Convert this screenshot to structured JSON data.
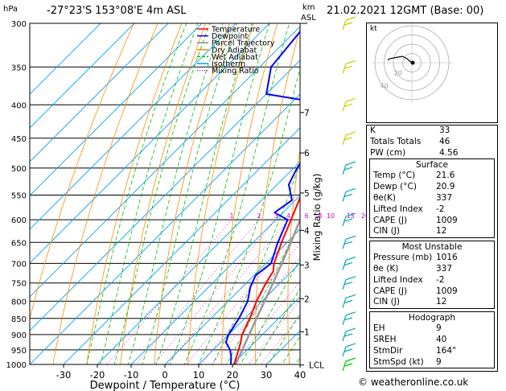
{
  "header": {
    "hpa_label": "hPa",
    "location": "-27°23'S  153°08'E  4m  ASL",
    "km_label": "km",
    "asl_label": "ASL",
    "datetime": "21.02.2021  12GMT  (Base: 00)"
  },
  "legend": [
    {
      "label": "Temperature",
      "color": "#ff0000",
      "style": "solid"
    },
    {
      "label": "Dewpoint",
      "color": "#0000ff",
      "style": "solid"
    },
    {
      "label": "Parcel Trajectory",
      "color": "#888888",
      "style": "solid"
    },
    {
      "label": "Dry Adiabat",
      "color": "#ff8c00",
      "style": "solid"
    },
    {
      "label": "Wet Adiabat",
      "color": "#00bb00",
      "style": "dashed"
    },
    {
      "label": "Isotherm",
      "color": "#00a0ff",
      "style": "solid"
    },
    {
      "label": "Mixing Ratio",
      "color": "#dd00dd",
      "style": "dotted"
    }
  ],
  "chart_data": {
    "type": "line",
    "xlabel": "Dewpoint / Temperature (°C)",
    "ylabel_right": "Mixing Ratio (g/kg)",
    "x_ticks": [
      -30,
      -20,
      -10,
      0,
      10,
      20,
      30,
      40
    ],
    "pressure_levels": [
      300,
      350,
      400,
      450,
      500,
      550,
      600,
      650,
      700,
      750,
      800,
      850,
      900,
      950,
      1000
    ],
    "km_ticks": [
      {
        "label": "7",
        "p": 411
      },
      {
        "label": "6",
        "p": 474
      },
      {
        "label": "5",
        "p": 546
      },
      {
        "label": "4",
        "p": 623
      },
      {
        "label": "3",
        "p": 704
      },
      {
        "label": "2",
        "p": 793
      },
      {
        "label": "1",
        "p": 891
      },
      {
        "label": "LCL",
        "p": 1002
      }
    ],
    "mixing_ratio_labels": [
      "1",
      "2",
      "3",
      "4",
      "6",
      "8",
      "10",
      "15",
      "20",
      "25"
    ],
    "mixing_ratio_values": [
      1,
      2,
      3,
      4,
      6,
      8,
      10,
      15,
      20,
      25
    ],
    "series": [
      {
        "name": "Temperature",
        "color": "#ff0000",
        "p": [
          1016,
          1000,
          975,
          950,
          925,
          900,
          850,
          800,
          750,
          720,
          700,
          650,
          600,
          550,
          500,
          450,
          400,
          350,
          300
        ],
        "t": [
          21.6,
          20.5,
          19.0,
          17.5,
          15.9,
          14.0,
          11.5,
          8.4,
          5.8,
          4.5,
          2.4,
          -1.6,
          -5.5,
          -9.8,
          -14.9,
          -20.3,
          -26.7,
          -34.2,
          -42.9
        ]
      },
      {
        "name": "Dewpoint",
        "color": "#0000ff",
        "p": [
          1016,
          1000,
          975,
          950,
          925,
          900,
          850,
          800,
          760,
          730,
          700,
          650,
          600,
          585,
          560,
          530,
          500,
          450,
          430,
          400,
          385,
          350,
          300
        ],
        "t": [
          20.9,
          19.5,
          17.5,
          15.0,
          11.5,
          10.0,
          8.3,
          5.8,
          2.3,
          0.5,
          1.5,
          -2.7,
          -6.5,
          -12.5,
          -11.0,
          -16.6,
          -19.0,
          -21.3,
          -24.0,
          -27.3,
          -50.0,
          -56.6,
          -58.9
        ]
      },
      {
        "name": "Parcel Trajectory",
        "color": "#999999",
        "p": [
          1016,
          1000,
          950,
          900,
          850,
          800,
          750,
          700,
          650,
          600,
          550,
          500,
          450,
          400,
          350,
          300
        ],
        "t": [
          21.6,
          20.9,
          18.6,
          16.1,
          13.5,
          10.8,
          7.9,
          4.7,
          1.2,
          -2.8,
          -7.3,
          -12.6,
          -18.8,
          -26.0,
          -34.6,
          -44.6
        ]
      }
    ]
  },
  "wind_barbs": {
    "p": [
      300,
      350,
      400,
      450,
      500,
      550,
      600,
      650,
      700,
      750,
      800,
      850,
      900,
      950,
      1000
    ],
    "color_upper": "#cccc00",
    "color_mid": "#00aaaa",
    "color_low": "#00cc00"
  },
  "hodograph": {
    "label": "kt",
    "rings": [
      10,
      20,
      30,
      40
    ],
    "ring_labels": [
      "20",
      "40"
    ]
  },
  "indices": [
    {
      "label": "K",
      "value": "33"
    },
    {
      "label": "Totals Totals",
      "value": "46"
    },
    {
      "label": "PW (cm)",
      "value": "4.56"
    }
  ],
  "surface": {
    "title": "Surface",
    "rows": [
      {
        "label": "Temp (°C)",
        "value": "21.6"
      },
      {
        "label": "Dewp (°C)",
        "value": "20.9"
      },
      {
        "label": "θe(K)",
        "value": "337"
      },
      {
        "label": "Lifted Index",
        "value": "-2"
      },
      {
        "label": "CAPE (J)",
        "value": "1009"
      },
      {
        "label": "CIN (J)",
        "value": "12"
      }
    ]
  },
  "most_unstable": {
    "title": "Most Unstable",
    "rows": [
      {
        "label": "Pressure (mb)",
        "value": "1016"
      },
      {
        "label": "θe (K)",
        "value": "337"
      },
      {
        "label": "Lifted Index",
        "value": "-2"
      },
      {
        "label": "CAPE (J)",
        "value": "1009"
      },
      {
        "label": "CIN (J)",
        "value": "12"
      }
    ]
  },
  "hodograph_stats": {
    "title": "Hodograph",
    "rows": [
      {
        "label": "EH",
        "value": "9"
      },
      {
        "label": "SREH",
        "value": "40"
      },
      {
        "label": "StmDir",
        "value": "164°"
      },
      {
        "label": "StmSpd (kt)",
        "value": "9"
      }
    ]
  },
  "copyright": "© weatheronline.co.uk"
}
